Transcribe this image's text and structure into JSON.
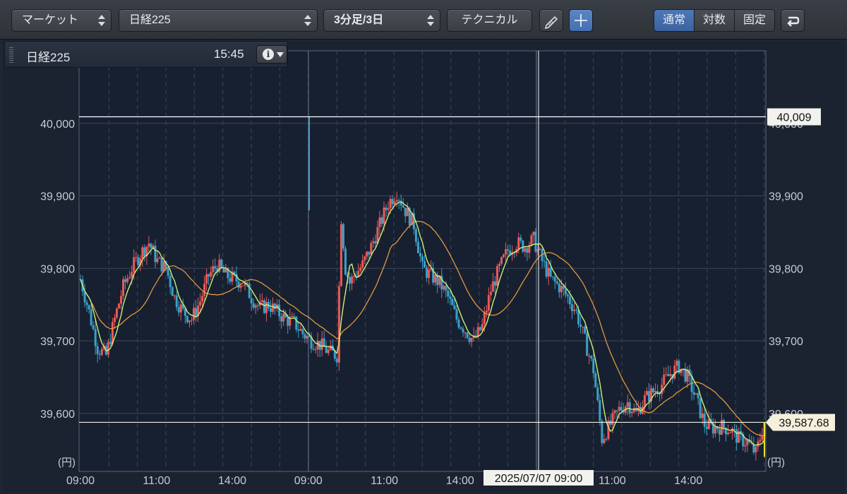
{
  "toolbar": {
    "market_label": "マーケット",
    "symbol_label": "日経225",
    "period_label": "3分足/3日",
    "technical_label": "テクニカル",
    "pencil_icon": "pencil-icon",
    "crosshair_icon": "crosshair-icon",
    "scale_options": [
      "通常",
      "対数",
      "固定"
    ],
    "scale_selected": "通常",
    "back_icon": "return-icon"
  },
  "info": {
    "name": "日経225",
    "time": "15:45",
    "info_icon": "i"
  },
  "colors": {
    "up": "#e85a5a",
    "down": "#3aa0c8",
    "ma_short": "#c8f07a",
    "ma_long": "#f0a040",
    "accent": "#4d78b8"
  },
  "chart_data": {
    "type": "candlestick",
    "unit_label": "(円)",
    "ylim": [
      39520,
      40100
    ],
    "y_ticks": [
      39600,
      39700,
      39800,
      39900,
      40000
    ],
    "y_tick_labels": [
      "39,600",
      "39,700",
      "39,800",
      "39,900",
      "40,000"
    ],
    "x_tick_labels": [
      "09:00",
      "11:00",
      "14:00",
      "09:00",
      "11:00",
      "14:00",
      "09:00",
      "11:00",
      "14:00"
    ],
    "day_boundaries": [
      0,
      40,
      80
    ],
    "sessions": 120,
    "high_line": 40009,
    "high_label": "40,009",
    "last_value": 39587.68,
    "last_label": "39,587.68",
    "crosshair_label": "2025/07/07 09:00",
    "crosshair_index": 80,
    "price_path": [
      [
        0,
        39785
      ],
      [
        2,
        39740
      ],
      [
        4,
        39690
      ],
      [
        6,
        39680
      ],
      [
        8,
        39730
      ],
      [
        10,
        39775
      ],
      [
        12,
        39800
      ],
      [
        14,
        39820
      ],
      [
        16,
        39835
      ],
      [
        18,
        39810
      ],
      [
        20,
        39800
      ],
      [
        22,
        39760
      ],
      [
        24,
        39740
      ],
      [
        26,
        39730
      ],
      [
        28,
        39755
      ],
      [
        30,
        39790
      ],
      [
        32,
        39805
      ],
      [
        34,
        39790
      ],
      [
        36,
        39785
      ],
      [
        38,
        39780
      ],
      [
        40,
        39760
      ],
      [
        42,
        39745
      ],
      [
        44,
        39750
      ],
      [
        46,
        39740
      ],
      [
        48,
        39730
      ],
      [
        50,
        39725
      ],
      [
        52,
        39710
      ],
      [
        54,
        39700
      ],
      [
        56,
        39695
      ],
      [
        58,
        39685
      ],
      [
        60,
        39680
      ],
      [
        61,
        39870
      ],
      [
        62,
        39800
      ],
      [
        63,
        39780
      ],
      [
        64,
        39790
      ],
      [
        66,
        39805
      ],
      [
        68,
        39830
      ],
      [
        70,
        39860
      ],
      [
        72,
        39890
      ],
      [
        74,
        39905
      ],
      [
        76,
        39880
      ],
      [
        78,
        39860
      ],
      [
        80,
        39800
      ],
      [
        82,
        39790
      ],
      [
        84,
        39780
      ],
      [
        86,
        39760
      ],
      [
        88,
        39730
      ],
      [
        90,
        39715
      ],
      [
        92,
        39700
      ],
      [
        94,
        39720
      ],
      [
        96,
        39770
      ],
      [
        98,
        39800
      ],
      [
        100,
        39825
      ],
      [
        102,
        39835
      ],
      [
        104,
        39830
      ],
      [
        106,
        39840
      ],
      [
        108,
        39810
      ],
      [
        110,
        39785
      ],
      [
        112,
        39775
      ],
      [
        114,
        39760
      ],
      [
        116,
        39740
      ],
      [
        118,
        39700
      ],
      [
        120,
        39660
      ],
      [
        122,
        39565
      ],
      [
        124,
        39585
      ],
      [
        126,
        39605
      ],
      [
        128,
        39615
      ],
      [
        130,
        39600
      ],
      [
        132,
        39620
      ],
      [
        134,
        39630
      ],
      [
        136,
        39640
      ],
      [
        138,
        39655
      ],
      [
        140,
        39665
      ],
      [
        142,
        39650
      ],
      [
        144,
        39620
      ],
      [
        146,
        39585
      ],
      [
        148,
        39580
      ],
      [
        150,
        39582
      ],
      [
        152,
        39578
      ],
      [
        154,
        39565
      ],
      [
        156,
        39560
      ],
      [
        158,
        39545
      ],
      [
        160,
        39588
      ]
    ]
  }
}
